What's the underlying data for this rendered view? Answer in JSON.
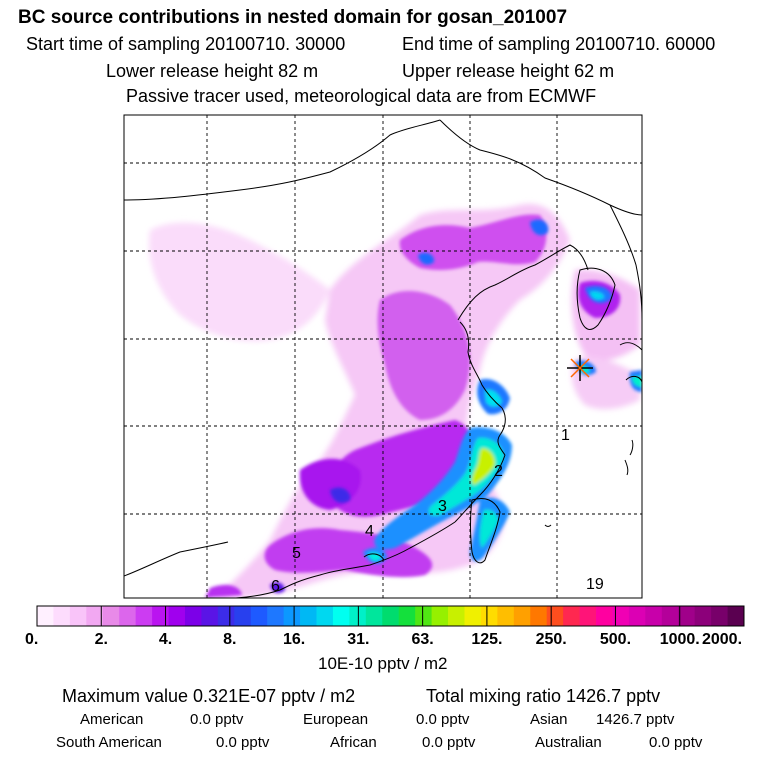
{
  "header": {
    "title": "BC  source contributions in nested domain for gosan_201007",
    "start_time": "Start time of sampling 20100710. 30000",
    "end_time": "End time of sampling 20100710. 60000",
    "lower_release": "Lower release height   82 m",
    "upper_release": "Upper release height   62 m",
    "tracer_note": "Passive tracer used, meteorological data are from ECMWF"
  },
  "chart_data": {
    "type": "heatmap",
    "title": "BC  source contributions in nested domain for gosan_201007",
    "colorbar": {
      "tick_labels": [
        "0.",
        "2.",
        "4.",
        "8.",
        "16.",
        "31.",
        "63.",
        "125.",
        "250.",
        "500.",
        "1000.",
        "2000."
      ],
      "tick_values": [
        0,
        2,
        4,
        8,
        16,
        31,
        63,
        125,
        250,
        500,
        1000,
        2000
      ],
      "unit": "10E-10 pptv / m2",
      "colors": [
        "#fff0ff",
        "#fddcfd",
        "#f9c4f9",
        "#f2a8f2",
        "#e88ae8",
        "#dc66ec",
        "#cc3cf2",
        "#ba14f0",
        "#a000ee",
        "#7c00e8",
        "#5a14e6",
        "#3c2ce8",
        "#2840ee",
        "#1e5aff",
        "#1e78ff",
        "#0c98ff",
        "#00b8f4",
        "#00d8f0",
        "#00fff0",
        "#00f0c8",
        "#00e69c",
        "#00dc6e",
        "#14e03c",
        "#50e614",
        "#96f000",
        "#c8f000",
        "#f0f000",
        "#ffdc00",
        "#ffbe00",
        "#ffa000",
        "#ff7800",
        "#ff4e1e",
        "#ff2850",
        "#ff1478",
        "#ff00a0",
        "#f000b4",
        "#dc00b4",
        "#c800aa",
        "#b4009a",
        "#a0008a",
        "#8c007a",
        "#78006a",
        "#5a0050"
      ]
    },
    "region_labels": [
      "1",
      "2",
      "3",
      "4",
      "5",
      "6",
      "19"
    ],
    "receptor": "gosan"
  },
  "stats": {
    "max_value": "Maximum value  0.321E-07 pptv / m2",
    "total_mixing": "Total mixing ratio     1426.7 pptv"
  },
  "contributions": [
    {
      "name": "American",
      "value": "0.0 pptv"
    },
    {
      "name": "European",
      "value": "0.0 pptv"
    },
    {
      "name": "Asian",
      "value": "1426.7 pptv"
    },
    {
      "name": "South American",
      "value": "0.0 pptv"
    },
    {
      "name": "African",
      "value": "0.0 pptv"
    },
    {
      "name": "Australian",
      "value": "0.0 pptv"
    }
  ]
}
